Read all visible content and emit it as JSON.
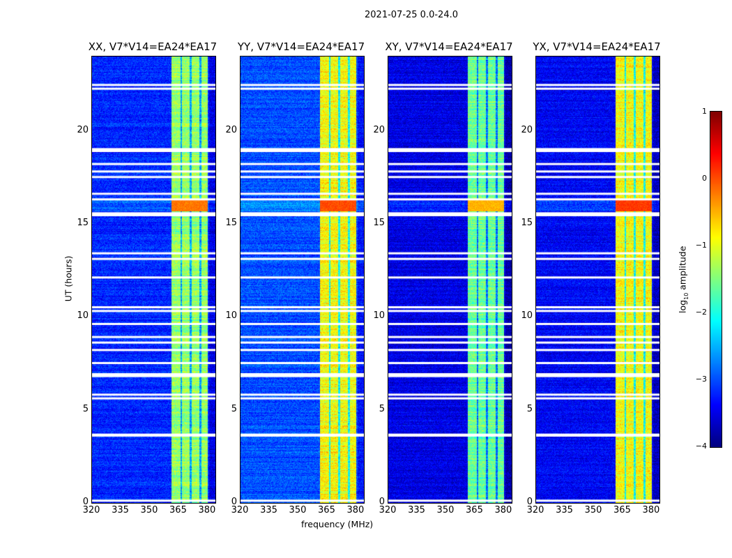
{
  "chart_data": {
    "type": "heatmap",
    "title": "2021-07-25 0.0-24.0",
    "xlabel": "frequency (MHz)",
    "ylabel": "UT (hours)",
    "xlim": [
      320,
      384
    ],
    "ylim": [
      0,
      24
    ],
    "xticks": [
      "320",
      "335",
      "350",
      "365",
      "380"
    ],
    "yticks": [
      "0",
      "5",
      "10",
      "15",
      "20"
    ],
    "panels": [
      {
        "title": "XX, V7*V14=EA24*EA17",
        "band_level": -1.4,
        "bg_level": -3.2,
        "burst_level": -0.2
      },
      {
        "title": "YY, V7*V14=EA24*EA17",
        "band_level": -0.9,
        "bg_level": -3.0,
        "burst_level": 0.0
      },
      {
        "title": "XY, V7*V14=EA24*EA17",
        "band_level": -1.6,
        "bg_level": -3.5,
        "burst_level": -0.5
      },
      {
        "title": "YX, V7*V14=EA24*EA17",
        "band_level": -0.9,
        "bg_level": -3.4,
        "burst_level": 0.1
      }
    ],
    "rfi_band_mhz": [
      361,
      380
    ],
    "band_dividers_mhz": [
      366,
      371,
      376
    ],
    "burst_hours": [
      15.7,
      16.3
    ],
    "flagged_hours": [
      0.1,
      3.6,
      3.65,
      5.6,
      5.8,
      6.8,
      6.9,
      7.5,
      8.2,
      8.6,
      8.9,
      9.6,
      10.3,
      10.5,
      12.1,
      13.1,
      13.4,
      15.45,
      15.55,
      16.3,
      16.6,
      17.5,
      17.8,
      18.2,
      18.9,
      19.0,
      22.25,
      22.45
    ],
    "colorbar": {
      "label": "log10 amplitude",
      "ticks": [
        "1",
        "0",
        "−1",
        "−2",
        "−3",
        "−4"
      ],
      "range": [
        -4,
        1
      ],
      "colormap": "jet"
    }
  }
}
